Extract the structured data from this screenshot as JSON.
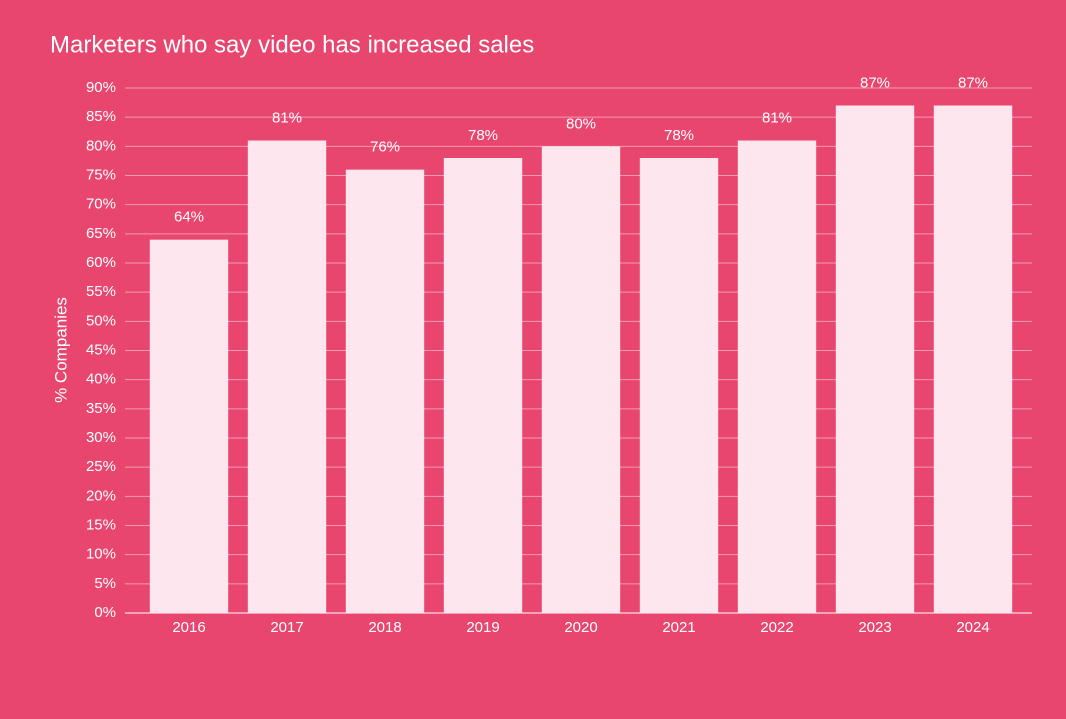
{
  "chart_data": {
    "type": "bar",
    "title": "Marketers who say video has increased sales",
    "y_label": "% Companies",
    "categories": [
      "2016",
      "2017",
      "2018",
      "2019",
      "2020",
      "2021",
      "2022",
      "2023",
      "2024"
    ],
    "values": [
      64,
      81,
      76,
      78,
      80,
      78,
      81,
      87,
      87
    ],
    "value_labels": [
      "64%",
      "81%",
      "76%",
      "78%",
      "80%",
      "78%",
      "81%",
      "87%",
      "87%"
    ],
    "color": "#fde6ed",
    "ylim": [
      0,
      90
    ],
    "yticks": [
      {
        "value": 0,
        "label": "0%"
      },
      {
        "value": 5,
        "label": "5%"
      },
      {
        "value": 10,
        "label": "10%"
      },
      {
        "value": 15,
        "label": "15%"
      },
      {
        "value": 20,
        "label": "20%"
      },
      {
        "value": 25,
        "label": "25%"
      },
      {
        "value": 30,
        "label": "30%"
      },
      {
        "value": 35,
        "label": "35%"
      },
      {
        "value": 40,
        "label": "40%"
      },
      {
        "value": 45,
        "label": "45%"
      },
      {
        "value": 50,
        "label": "50%"
      },
      {
        "value": 55,
        "label": "55%"
      },
      {
        "value": 60,
        "label": "60%"
      },
      {
        "value": 65,
        "label": "65%"
      },
      {
        "value": 70,
        "label": "70%"
      },
      {
        "value": 75,
        "label": "75%"
      },
      {
        "value": 80,
        "label": "80%"
      },
      {
        "value": 85,
        "label": "85%"
      },
      {
        "value": 90,
        "label": "90%"
      }
    ],
    "grid": true
  }
}
